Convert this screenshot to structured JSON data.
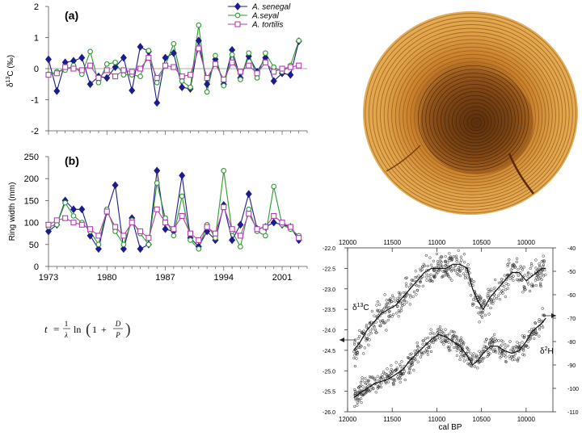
{
  "chart_data": [
    {
      "type": "line",
      "panel_label": "(a)",
      "ylabel": "δ13C (‰)",
      "ylim": [
        -2,
        2
      ],
      "yticks": [
        -2,
        -1,
        0,
        1,
        2
      ],
      "x": [
        1973,
        1974,
        1975,
        1976,
        1977,
        1978,
        1979,
        1980,
        1981,
        1982,
        1983,
        1984,
        1985,
        1986,
        1987,
        1988,
        1989,
        1990,
        1991,
        1992,
        1993,
        1994,
        1995,
        1996,
        1997,
        1998,
        1999,
        2000,
        2001,
        2002,
        2003
      ],
      "series": [
        {
          "name": "A. senegal",
          "color": "#1c1c8c",
          "marker": "diamond",
          "values": [
            0.3,
            -0.72,
            0.2,
            0.25,
            0.35,
            -0.5,
            -0.25,
            -0.3,
            0.05,
            0.35,
            -0.7,
            0.7,
            0.55,
            -1.1,
            0.35,
            0.5,
            -0.6,
            -0.65,
            0.9,
            -0.5,
            0.3,
            -0.5,
            0.6,
            -0.3,
            0.4,
            -0.1,
            0.35,
            -0.4,
            -0.15,
            -0.2,
            0.88
          ]
        },
        {
          "name": "A.seyal",
          "color": "#2e9a2e",
          "marker": "circle",
          "values": [
            -0.18,
            -0.1,
            -0.05,
            0.1,
            -0.18,
            0.55,
            -0.45,
            0.15,
            0.2,
            -0.2,
            -0.2,
            -0.25,
            0.58,
            -0.45,
            0.1,
            0.8,
            -0.4,
            -0.6,
            1.4,
            -0.75,
            0.42,
            -0.55,
            0.45,
            -0.35,
            0.5,
            -0.3,
            0.5,
            0.05,
            -0.1,
            0.1,
            0.9
          ]
        },
        {
          "name": "A. tortilis",
          "color": "#b040b0",
          "marker": "square",
          "values": [
            -0.2,
            -0.15,
            0.05,
            0.0,
            -0.05,
            0.1,
            -0.3,
            -0.05,
            -0.25,
            -0.05,
            -0.1,
            0.0,
            0.35,
            -0.3,
            0.1,
            0.05,
            -0.25,
            -0.2,
            0.65,
            -0.3,
            0.15,
            -0.35,
            0.2,
            -0.1,
            0.1,
            -0.15,
            0.2,
            -0.1,
            0.0,
            0.05,
            0.1
          ]
        }
      ]
    },
    {
      "type": "line",
      "panel_label": "(b)",
      "ylabel": "Ring width (mm)",
      "ylim": [
        0,
        250
      ],
      "yticks": [
        0,
        50,
        100,
        150,
        200,
        250
      ],
      "xlim": [
        1973,
        2004
      ],
      "xticks": [
        1973,
        1980,
        1987,
        1994,
        2001
      ],
      "x": [
        1973,
        1974,
        1975,
        1976,
        1977,
        1978,
        1979,
        1980,
        1981,
        1982,
        1983,
        1984,
        1985,
        1986,
        1987,
        1988,
        1989,
        1990,
        1991,
        1992,
        1993,
        1994,
        1995,
        1996,
        1997,
        1998,
        1999,
        2000,
        2001,
        2002,
        2003
      ],
      "series": [
        {
          "name": "A. senegal",
          "color": "#1c1c8c",
          "marker": "diamond",
          "values": [
            80,
            95,
            150,
            130,
            130,
            70,
            40,
            125,
            185,
            40,
            110,
            40,
            50,
            218,
            85,
            80,
            207,
            65,
            45,
            80,
            60,
            140,
            60,
            95,
            165,
            85,
            90,
            100,
            95,
            90,
            60
          ]
        },
        {
          "name": "A.seyal",
          "color": "#2e9a2e",
          "marker": "circle",
          "values": [
            90,
            95,
            145,
            115,
            100,
            80,
            50,
            130,
            80,
            50,
            105,
            75,
            50,
            190,
            110,
            70,
            160,
            60,
            40,
            95,
            65,
            218,
            80,
            45,
            130,
            80,
            70,
            182,
            95,
            85,
            70
          ]
        },
        {
          "name": "A. tortilis",
          "color": "#b040b0",
          "marker": "square",
          "values": [
            95,
            105,
            110,
            100,
            95,
            85,
            70,
            125,
            90,
            70,
            100,
            80,
            65,
            130,
            100,
            85,
            115,
            75,
            60,
            90,
            75,
            135,
            85,
            70,
            120,
            85,
            90,
            115,
            100,
            90,
            65
          ]
        }
      ]
    },
    {
      "type": "scatter",
      "xlabel": "cal BP",
      "xlim": [
        12000,
        9700
      ],
      "xticks": [
        12000,
        11500,
        11000,
        10500,
        10000
      ],
      "left_axis": {
        "label": "δ13C",
        "ylim": [
          -22,
          -26
        ],
        "ticks": [
          -22.0,
          -22.5,
          -23.0,
          -23.5,
          -24.0,
          -24.5,
          -25.0,
          -25.5,
          -26.0
        ]
      },
      "right_axis": {
        "label": "δ2H",
        "ylim": [
          -40,
          -110
        ],
        "ticks": [
          -40,
          -50,
          -60,
          -70,
          -80,
          -90,
          -100,
          -110
        ]
      },
      "series": [
        {
          "name": "δ13C",
          "x": [
            11930,
            11860,
            11780,
            11700,
            11620,
            11540,
            11460,
            11380,
            11300,
            11220,
            11140,
            11060,
            10980,
            10900,
            10820,
            10740,
            10660,
            10600,
            10540,
            10480,
            10400,
            10320,
            10240,
            10160,
            10080,
            10000,
            9940,
            9880,
            9820,
            9780
          ],
          "values": [
            -24.5,
            -24.3,
            -24.0,
            -23.8,
            -23.6,
            -23.5,
            -23.4,
            -23.2,
            -23.0,
            -22.8,
            -22.6,
            -22.5,
            -22.5,
            -22.5,
            -22.4,
            -22.4,
            -22.5,
            -23.0,
            -23.3,
            -23.5,
            -23.2,
            -23.0,
            -22.8,
            -22.6,
            -22.6,
            -22.8,
            -22.7,
            -22.6,
            -22.5,
            -22.5
          ]
        },
        {
          "name": "δ2H",
          "x": [
            11930,
            11860,
            11780,
            11700,
            11620,
            11540,
            11460,
            11380,
            11300,
            11220,
            11140,
            11060,
            10980,
            10900,
            10820,
            10740,
            10660,
            10600,
            10540,
            10480,
            10400,
            10320,
            10240,
            10160,
            10080,
            10000,
            9940,
            9880,
            9820,
            9780
          ],
          "values": [
            -104,
            -102,
            -100,
            -98,
            -97,
            -96,
            -94,
            -92,
            -88,
            -85,
            -82,
            -79,
            -77,
            -78,
            -80,
            -82,
            -86,
            -90,
            -88,
            -85,
            -82,
            -82,
            -84,
            -85,
            -84,
            -80,
            -76,
            -74,
            -72,
            -70
          ]
        }
      ]
    }
  ]
}
